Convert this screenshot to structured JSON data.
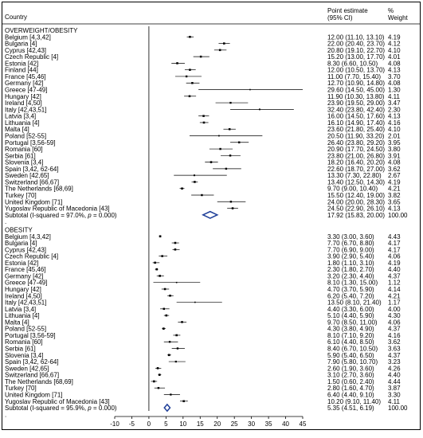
{
  "chart_data": {
    "type": "forest",
    "columns": {
      "study": "Country",
      "estimate": "Point estimate (95% CI)",
      "weight": "% Weight"
    },
    "x_axis": {
      "ticks": [
        -10,
        -5,
        0,
        5,
        10,
        15,
        20,
        25,
        30,
        35,
        40,
        45
      ],
      "range": [
        -10,
        45
      ],
      "null_line": 0
    },
    "groups": [
      {
        "name": "OVERWEIGHT/OBESITY",
        "studies": [
          {
            "label": "Belgium [4,3,42]",
            "est": 12.0,
            "lo": 11.1,
            "hi": 13.1,
            "ci": "12.00 (11.10, 13.10)",
            "weight": "4.19"
          },
          {
            "label": "Bulgaria [4]",
            "est": 22.0,
            "lo": 20.4,
            "hi": 23.7,
            "ci": "22.00 (20.40, 23.70)",
            "weight": "4.12"
          },
          {
            "label": "Cyprus [42,43]",
            "est": 20.8,
            "lo": 19.1,
            "hi": 22.7,
            "ci": "20.80 (19.10, 22.70)",
            "weight": "4.10"
          },
          {
            "label": "Czech Republic [4]",
            "est": 15.2,
            "lo": 13.0,
            "hi": 17.7,
            "ci": "15.20 (13.00, 17.70)",
            "weight": "4.01"
          },
          {
            "label": "Estonia [42]",
            "est": 8.3,
            "lo": 6.6,
            "hi": 10.5,
            "ci": "8.30 (6.60, 10.50)",
            "weight": "4.08"
          },
          {
            "label": "Finland [44]",
            "est": 12.0,
            "lo": 10.5,
            "hi": 13.7,
            "ci": "12.00 (10.50, 13.70)",
            "weight": "4.13"
          },
          {
            "label": "France [45,46]",
            "est": 11.0,
            "lo": 7.7,
            "hi": 15.4,
            "ci": "11.00 (7.70, 15.40)",
            "weight": "3.70"
          },
          {
            "label": "Germany [42]",
            "est": 12.7,
            "lo": 10.9,
            "hi": 14.8,
            "ci": "12.70 (10.90, 14.80)",
            "weight": "4.08"
          },
          {
            "label": "Greece [47-49]",
            "est": 29.6,
            "lo": 14.5,
            "hi": 45.0,
            "ci": "29.60 (14.50, 45.00)",
            "weight": "1.30"
          },
          {
            "label": "Hungary [42]",
            "est": 11.9,
            "lo": 10.3,
            "hi": 13.8,
            "ci": "11.90 (10.30, 13.80)",
            "weight": "4.11"
          },
          {
            "label": "Ireland [4,50]",
            "est": 23.9,
            "lo": 19.5,
            "hi": 29.0,
            "ci": "23.90 (19.50, 29.00)",
            "weight": "3.47"
          },
          {
            "label": "Italy [42,43,51]",
            "est": 32.4,
            "lo": 23.8,
            "hi": 42.4,
            "ci": "32.40 (23.80, 42.40)",
            "weight": "2.30"
          },
          {
            "label": "Latvia [3,4]",
            "est": 16.0,
            "lo": 14.5,
            "hi": 17.6,
            "ci": "16.00 (14.50, 17.60)",
            "weight": "4.13"
          },
          {
            "label": "Lithuania [4]",
            "est": 16.1,
            "lo": 14.9,
            "hi": 17.4,
            "ci": "16.10 (14.90, 17.40)",
            "weight": "4.16"
          },
          {
            "label": "Malta [4]",
            "est": 23.6,
            "lo": 21.8,
            "hi": 25.4,
            "ci": "23.60 (21.80, 25.40)",
            "weight": "4.10"
          },
          {
            "label": "Poland [52-55]",
            "est": 20.5,
            "lo": 11.9,
            "hi": 33.2,
            "ci": "20.50 (11.90, 33.20)",
            "weight": "2.01"
          },
          {
            "label": "Portugal [3,56-59]",
            "est": 26.4,
            "lo": 23.8,
            "hi": 29.2,
            "ci": "26.40 (23.80, 29.20)",
            "weight": "3.95"
          },
          {
            "label": "Romania [60]",
            "est": 20.9,
            "lo": 17.7,
            "hi": 24.5,
            "ci": "20.90 (17.70, 24.50)",
            "weight": "3.80"
          },
          {
            "label": "Serbia [61]",
            "est": 23.8,
            "lo": 21.0,
            "hi": 26.8,
            "ci": "23.80 (21.00, 26.80)",
            "weight": "3.91"
          },
          {
            "label": "Slovenia [3,4]",
            "est": 18.2,
            "lo": 16.4,
            "hi": 20.2,
            "ci": "18.20 (16.40, 20.20)",
            "weight": "4.08"
          },
          {
            "label": "Spain [3,42, 62-64]",
            "est": 22.6,
            "lo": 18.7,
            "hi": 27.0,
            "ci": "22.60 (18.70, 27.00)",
            "weight": "3.62"
          },
          {
            "label": "Sweden [42,65]",
            "est": 13.3,
            "lo": 7.3,
            "hi": 22.8,
            "ci": "13.30 (7.30, 22.80)",
            "weight": "2.67"
          },
          {
            "label": "Switzerland [66,67]",
            "est": 13.4,
            "lo": 12.5,
            "hi": 14.3,
            "ci": "13.40 (12.50, 14.30)",
            "weight": "4.19"
          },
          {
            "label": "The Netherlands [68,69]",
            "est": 9.7,
            "lo": 9.0,
            "hi": 10.4,
            "ci": "9.70 (9.00, 10.40)",
            "weight": "4.21"
          },
          {
            "label": "Turkey [70]",
            "est": 15.5,
            "lo": 12.4,
            "hi": 19.0,
            "ci": "15.50 (12.40, 19.00)",
            "weight": "3.82"
          },
          {
            "label": "United Kingdom [71]",
            "est": 24.0,
            "lo": 20.0,
            "hi": 28.3,
            "ci": "24.00 (20.00, 28.30)",
            "weight": "3.65"
          },
          {
            "label": "Yugoslav Republic of Macedonia [43]",
            "est": 24.5,
            "lo": 22.9,
            "hi": 26.1,
            "ci": "24.50 (22.90, 26.10)",
            "weight": "4.13"
          }
        ],
        "subtotal": {
          "label_prefix": "Subtotal  (I-squared = 97.0%, ",
          "label_p": "p",
          "label_suffix": " = 0.000)",
          "est": 17.92,
          "lo": 15.83,
          "hi": 20.0,
          "ci": "17.92 (15.83, 20.00)",
          "weight": "100.00"
        }
      },
      {
        "name": "OBESITY",
        "studies": [
          {
            "label": "Belgium [4,3,42]",
            "est": 3.3,
            "lo": 3.0,
            "hi": 3.6,
            "ci": "3.30 (3.00, 3.60)",
            "weight": "4.43"
          },
          {
            "label": "Bulgaria [4]",
            "est": 7.7,
            "lo": 6.7,
            "hi": 8.8,
            "ci": "7.70 (6.70, 8.80)",
            "weight": "4.17"
          },
          {
            "label": "Cyprus [42,43]",
            "est": 7.7,
            "lo": 6.9,
            "hi": 9.0,
            "ci": "7.70 (6.90, 9.00)",
            "weight": "4.17"
          },
          {
            "label": "Czech Republic [4]",
            "est": 3.9,
            "lo": 2.9,
            "hi": 5.4,
            "ci": "3.90 (2.90, 5.40)",
            "weight": "4.06"
          },
          {
            "label": "Estonia [42]",
            "est": 1.8,
            "lo": 1.1,
            "hi": 3.1,
            "ci": "1.80 (1.10, 3.10)",
            "weight": "4.19"
          },
          {
            "label": "France [45,46]",
            "est": 2.3,
            "lo": 1.8,
            "hi": 2.7,
            "ci": "2.30 (1.80, 2.70)",
            "weight": "4.40"
          },
          {
            "label": "Germany [42]",
            "est": 3.2,
            "lo": 2.3,
            "hi": 4.4,
            "ci": "3.20 (2.30, 4.40)",
            "weight": "4.37"
          },
          {
            "label": "Greece [47-49]",
            "est": 8.1,
            "lo": 1.3,
            "hi": 15.0,
            "ci": "8.10 (1.30, 15.00)",
            "weight": "1.12"
          },
          {
            "label": "Hungary [42]",
            "est": 4.7,
            "lo": 3.7,
            "hi": 5.9,
            "ci": "4.70 (3.70, 5.90)",
            "weight": "4.14"
          },
          {
            "label": "Ireland [4,50]",
            "est": 6.2,
            "lo": 5.4,
            "hi": 7.2,
            "ci": "6.20 (5.40, 7.20)",
            "weight": "4.21"
          },
          {
            "label": "Italy [42,43,51]",
            "est": 13.5,
            "lo": 8.1,
            "hi": 21.4,
            "ci": "13.50 (8.10, 21.40)",
            "weight": "1.17"
          },
          {
            "label": "Latvia [3,4]",
            "est": 4.4,
            "lo": 3.3,
            "hi": 6.0,
            "ci": "4.40 (3.30, 6.00)",
            "weight": "4.00"
          },
          {
            "label": "Lithuania [4]",
            "est": 5.1,
            "lo": 4.4,
            "hi": 5.9,
            "ci": "5.10 (4.40, 5.90)",
            "weight": "4.30"
          },
          {
            "label": "Malta [4]",
            "est": 9.7,
            "lo": 8.5,
            "hi": 11.0,
            "ci": "9.70 (8.50, 11.00)",
            "weight": "4.06"
          },
          {
            "label": "Poland [52-55]",
            "est": 4.3,
            "lo": 3.8,
            "hi": 4.9,
            "ci": "4.30 (3.80, 4.90)",
            "weight": "4.37"
          },
          {
            "label": "Portugal [3,56-59]",
            "est": 8.1,
            "lo": 7.1,
            "hi": 9.2,
            "ci": "8.10 (7.10, 9.20)",
            "weight": "4.16"
          },
          {
            "label": "Romania [60]",
            "est": 6.1,
            "lo": 4.4,
            "hi": 8.5,
            "ci": "6.10 (4.40, 8.50)",
            "weight": "3.62"
          },
          {
            "label": "Serbia [61]",
            "est": 8.4,
            "lo": 6.7,
            "hi": 10.5,
            "ci": "8.40 (6.70, 10.50)",
            "weight": "3.63"
          },
          {
            "label": "Slovenia [3,4]",
            "est": 5.9,
            "lo": 5.4,
            "hi": 6.5,
            "ci": "5.90 (5.40, 6.50)",
            "weight": "4.37"
          },
          {
            "label": "Spain [3,42, 62-64]",
            "est": 7.9,
            "lo": 5.8,
            "hi": 10.7,
            "ci": "7.90 (5.80, 10.70)",
            "weight": "3.23"
          },
          {
            "label": "Sweden [42,65]",
            "est": 2.6,
            "lo": 1.9,
            "hi": 3.6,
            "ci": "2.60 (1.90, 3.60)",
            "weight": "4.26"
          },
          {
            "label": "Switzerland [66,67]",
            "est": 3.1,
            "lo": 2.7,
            "hi": 3.6,
            "ci": "3.10 (2.70, 3.60)",
            "weight": "4.40"
          },
          {
            "label": "The Netherlands [68,69]",
            "est": 1.5,
            "lo": 0.6,
            "hi": 2.4,
            "ci": "1.50 (0.60, 2.40)",
            "weight": "4.44"
          },
          {
            "label": "Turkey [70]",
            "est": 2.8,
            "lo": 1.6,
            "hi": 4.7,
            "ci": "2.80 (1.60, 4.70)",
            "weight": "3.87"
          },
          {
            "label": "United Kingdom [71]",
            "est": 6.4,
            "lo": 4.4,
            "hi": 9.1,
            "ci": "6.40 (4.40, 9.10)",
            "weight": "3.30"
          },
          {
            "label": "Yugoslav Republic of Macedonia [43]",
            "est": 10.2,
            "lo": 9.1,
            "hi": 11.4,
            "ci": "10.20 (9.10, 11.40)",
            "weight": "4.11"
          }
        ],
        "subtotal": {
          "label_prefix": "Subtotal  (I-squared = 95.9%, ",
          "label_p": "p",
          "label_suffix": " = 0.000)",
          "est": 5.35,
          "lo": 4.51,
          "hi": 6.19,
          "ci": "5.35 (4.51, 6.19)",
          "weight": "100.00"
        }
      }
    ]
  }
}
